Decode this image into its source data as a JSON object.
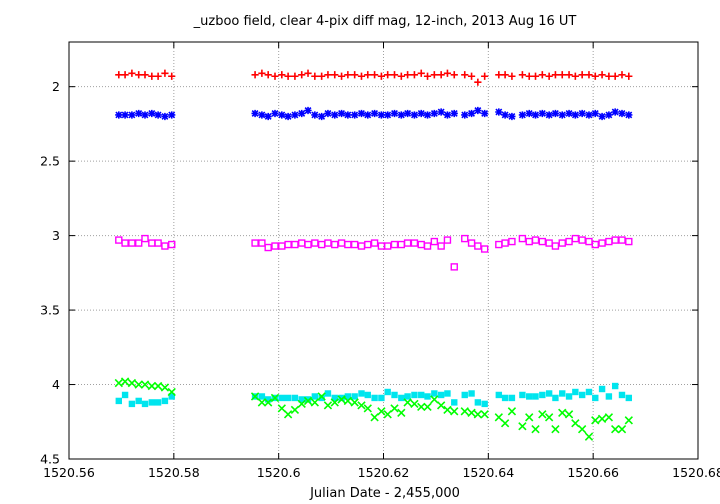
{
  "chart_data": {
    "type": "scatter",
    "title": "_uzboo field, clear 4-pix diff mag, 12-inch, 2013 Aug 16 UT",
    "xlabel": "Julian Date - 2,455,000",
    "ylabel": "",
    "xlim": [
      1520.56,
      1520.68
    ],
    "ylim": [
      1.7,
      4.5
    ],
    "y_inverted": true,
    "grid": true,
    "legend": "none",
    "xticks": [
      1520.56,
      1520.58,
      1520.6,
      1520.62,
      1520.64,
      1520.66,
      1520.68
    ],
    "xtick_labels": [
      "1520.56",
      "1520.58",
      "1520.6",
      "1520.62",
      "1520.64",
      "1520.66",
      "1520.68"
    ],
    "yticks": [
      2,
      2.5,
      3,
      3.5,
      4,
      4.5
    ],
    "ytick_labels": [
      "2",
      "2.5",
      "3",
      "3.5",
      "4",
      "4.5"
    ],
    "series": [
      {
        "marker": "plus",
        "color": "#ff0000",
        "x": [
          1520.5695,
          1520.5707,
          1520.572,
          1520.5733,
          1520.5745,
          1520.5758,
          1520.577,
          1520.5783,
          1520.5796,
          1520.5955,
          1520.5968,
          1520.598,
          1520.5993,
          1520.6006,
          1520.6018,
          1520.6031,
          1520.6044,
          1520.6056,
          1520.6069,
          1520.6082,
          1520.6094,
          1520.6107,
          1520.612,
          1520.6132,
          1520.6145,
          1520.6158,
          1520.617,
          1520.6183,
          1520.6196,
          1520.6208,
          1520.6221,
          1520.6234,
          1520.6246,
          1520.6259,
          1520.6272,
          1520.6284,
          1520.6297,
          1520.631,
          1520.6322,
          1520.6335,
          1520.6355,
          1520.6368,
          1520.638,
          1520.6393,
          1520.642,
          1520.6432,
          1520.6445,
          1520.6465,
          1520.6478,
          1520.649,
          1520.6503,
          1520.6516,
          1520.6528,
          1520.6541,
          1520.6554,
          1520.6566,
          1520.6579,
          1520.6592,
          1520.6604,
          1520.6617,
          1520.663,
          1520.6642,
          1520.6655,
          1520.6668
        ],
        "y": [
          1.92,
          1.92,
          1.91,
          1.92,
          1.92,
          1.93,
          1.93,
          1.91,
          1.93,
          1.92,
          1.91,
          1.92,
          1.93,
          1.92,
          1.93,
          1.93,
          1.92,
          1.91,
          1.93,
          1.93,
          1.92,
          1.92,
          1.93,
          1.92,
          1.92,
          1.93,
          1.92,
          1.92,
          1.93,
          1.92,
          1.92,
          1.93,
          1.92,
          1.92,
          1.91,
          1.93,
          1.92,
          1.92,
          1.91,
          1.92,
          1.92,
          1.93,
          1.97,
          1.93,
          1.92,
          1.92,
          1.93,
          1.92,
          1.93,
          1.93,
          1.92,
          1.93,
          1.92,
          1.92,
          1.92,
          1.93,
          1.92,
          1.92,
          1.93,
          1.92,
          1.93,
          1.93,
          1.92,
          1.93
        ]
      },
      {
        "marker": "star",
        "color": "#0000ff",
        "x": [
          1520.5695,
          1520.5707,
          1520.572,
          1520.5733,
          1520.5745,
          1520.5758,
          1520.577,
          1520.5783,
          1520.5796,
          1520.5955,
          1520.5968,
          1520.598,
          1520.5993,
          1520.6006,
          1520.6018,
          1520.6031,
          1520.6044,
          1520.6056,
          1520.6069,
          1520.6082,
          1520.6094,
          1520.6107,
          1520.612,
          1520.6132,
          1520.6145,
          1520.6158,
          1520.617,
          1520.6183,
          1520.6196,
          1520.6208,
          1520.6221,
          1520.6234,
          1520.6246,
          1520.6259,
          1520.6272,
          1520.6284,
          1520.6297,
          1520.631,
          1520.6322,
          1520.6335,
          1520.6355,
          1520.6368,
          1520.638,
          1520.6393,
          1520.642,
          1520.6432,
          1520.6445,
          1520.6465,
          1520.6478,
          1520.649,
          1520.6503,
          1520.6516,
          1520.6528,
          1520.6541,
          1520.6554,
          1520.6566,
          1520.6579,
          1520.6592,
          1520.6604,
          1520.6617,
          1520.663,
          1520.6642,
          1520.6655,
          1520.6668
        ],
        "y": [
          2.19,
          2.19,
          2.19,
          2.18,
          2.19,
          2.18,
          2.19,
          2.2,
          2.19,
          2.18,
          2.19,
          2.2,
          2.18,
          2.19,
          2.2,
          2.19,
          2.18,
          2.16,
          2.19,
          2.2,
          2.18,
          2.19,
          2.18,
          2.19,
          2.19,
          2.18,
          2.19,
          2.18,
          2.19,
          2.19,
          2.18,
          2.19,
          2.18,
          2.19,
          2.18,
          2.19,
          2.18,
          2.17,
          2.19,
          2.18,
          2.19,
          2.18,
          2.16,
          2.18,
          2.17,
          2.19,
          2.2,
          2.19,
          2.18,
          2.19,
          2.18,
          2.19,
          2.18,
          2.19,
          2.18,
          2.19,
          2.18,
          2.19,
          2.18,
          2.2,
          2.19,
          2.17,
          2.18,
          2.19
        ]
      },
      {
        "marker": "open-square",
        "color": "#ff00ff",
        "x": [
          1520.5695,
          1520.5707,
          1520.572,
          1520.5733,
          1520.5745,
          1520.5758,
          1520.577,
          1520.5783,
          1520.5796,
          1520.5955,
          1520.5968,
          1520.598,
          1520.5993,
          1520.6006,
          1520.6018,
          1520.6031,
          1520.6044,
          1520.6056,
          1520.6069,
          1520.6082,
          1520.6094,
          1520.6107,
          1520.612,
          1520.6132,
          1520.6145,
          1520.6158,
          1520.617,
          1520.6183,
          1520.6196,
          1520.6208,
          1520.6221,
          1520.6234,
          1520.6246,
          1520.6259,
          1520.6272,
          1520.6284,
          1520.6297,
          1520.631,
          1520.6322,
          1520.6335,
          1520.6355,
          1520.6368,
          1520.638,
          1520.6393,
          1520.642,
          1520.6432,
          1520.6445,
          1520.6465,
          1520.6478,
          1520.649,
          1520.6503,
          1520.6516,
          1520.6528,
          1520.6541,
          1520.6554,
          1520.6566,
          1520.6579,
          1520.6592,
          1520.6604,
          1520.6617,
          1520.663,
          1520.6642,
          1520.6655,
          1520.6668
        ],
        "y": [
          3.03,
          3.05,
          3.05,
          3.05,
          3.02,
          3.05,
          3.05,
          3.07,
          3.06,
          3.05,
          3.05,
          3.08,
          3.07,
          3.07,
          3.06,
          3.06,
          3.05,
          3.06,
          3.05,
          3.06,
          3.05,
          3.06,
          3.05,
          3.06,
          3.06,
          3.07,
          3.06,
          3.05,
          3.07,
          3.07,
          3.06,
          3.06,
          3.05,
          3.05,
          3.06,
          3.07,
          3.04,
          3.07,
          3.03,
          3.21,
          3.02,
          3.05,
          3.07,
          3.09,
          3.06,
          3.05,
          3.04,
          3.02,
          3.04,
          3.03,
          3.04,
          3.05,
          3.07,
          3.05,
          3.04,
          3.02,
          3.03,
          3.04,
          3.06,
          3.05,
          3.04,
          3.03,
          3.03,
          3.04
        ]
      },
      {
        "marker": "filled-square",
        "color": "#00e5ee",
        "x": [
          1520.5695,
          1520.5707,
          1520.572,
          1520.5733,
          1520.5745,
          1520.5758,
          1520.577,
          1520.5783,
          1520.5796,
          1520.5955,
          1520.5968,
          1520.598,
          1520.5993,
          1520.6006,
          1520.6018,
          1520.6031,
          1520.6044,
          1520.6056,
          1520.6069,
          1520.6082,
          1520.6094,
          1520.6107,
          1520.612,
          1520.6132,
          1520.6145,
          1520.6158,
          1520.617,
          1520.6183,
          1520.6196,
          1520.6208,
          1520.6221,
          1520.6234,
          1520.6246,
          1520.6259,
          1520.6272,
          1520.6284,
          1520.6297,
          1520.631,
          1520.6322,
          1520.6335,
          1520.6355,
          1520.6368,
          1520.638,
          1520.6393,
          1520.642,
          1520.6432,
          1520.6445,
          1520.6465,
          1520.6478,
          1520.649,
          1520.6503,
          1520.6516,
          1520.6528,
          1520.6541,
          1520.6554,
          1520.6566,
          1520.6579,
          1520.6592,
          1520.6604,
          1520.6617,
          1520.663,
          1520.6642,
          1520.6655,
          1520.6668
        ],
        "y": [
          4.11,
          4.07,
          4.13,
          4.11,
          4.13,
          4.12,
          4.12,
          4.11,
          4.08,
          4.08,
          4.08,
          4.1,
          4.09,
          4.09,
          4.09,
          4.09,
          4.1,
          4.1,
          4.08,
          4.09,
          4.06,
          4.09,
          4.09,
          4.08,
          4.08,
          4.06,
          4.07,
          4.09,
          4.09,
          4.05,
          4.07,
          4.09,
          4.08,
          4.07,
          4.07,
          4.08,
          4.06,
          4.07,
          4.06,
          4.12,
          4.07,
          4.06,
          4.12,
          4.13,
          4.07,
          4.09,
          4.09,
          4.07,
          4.08,
          4.08,
          4.07,
          4.06,
          4.09,
          4.06,
          4.08,
          4.05,
          4.07,
          4.05,
          4.09,
          4.03,
          4.08,
          4.01,
          4.07,
          4.09
        ]
      },
      {
        "marker": "x",
        "color": "#00ff00",
        "x": [
          1520.5695,
          1520.5707,
          1520.572,
          1520.5733,
          1520.5745,
          1520.5758,
          1520.577,
          1520.5783,
          1520.5796,
          1520.5955,
          1520.5968,
          1520.598,
          1520.5993,
          1520.6006,
          1520.6018,
          1520.6031,
          1520.6044,
          1520.6056,
          1520.6069,
          1520.6082,
          1520.6094,
          1520.6107,
          1520.612,
          1520.6132,
          1520.6145,
          1520.6158,
          1520.617,
          1520.6183,
          1520.6196,
          1520.6208,
          1520.6221,
          1520.6234,
          1520.6246,
          1520.6259,
          1520.6272,
          1520.6284,
          1520.6297,
          1520.631,
          1520.6322,
          1520.6335,
          1520.6355,
          1520.6368,
          1520.638,
          1520.6393,
          1520.642,
          1520.6432,
          1520.6445,
          1520.6465,
          1520.6478,
          1520.649,
          1520.6503,
          1520.6516,
          1520.6528,
          1520.6541,
          1520.6554,
          1520.6566,
          1520.6579,
          1520.6592,
          1520.6604,
          1520.6617,
          1520.663,
          1520.6642,
          1520.6655,
          1520.6668
        ],
        "y": [
          3.99,
          3.98,
          3.99,
          4.0,
          4.0,
          4.01,
          4.01,
          4.02,
          4.05,
          4.08,
          4.12,
          4.12,
          4.09,
          4.16,
          4.2,
          4.17,
          4.13,
          4.11,
          4.12,
          4.08,
          4.14,
          4.12,
          4.1,
          4.11,
          4.12,
          4.14,
          4.16,
          4.22,
          4.18,
          4.2,
          4.16,
          4.19,
          4.12,
          4.13,
          4.15,
          4.15,
          4.1,
          4.14,
          4.17,
          4.18,
          4.18,
          4.19,
          4.2,
          4.2,
          4.22,
          4.26,
          4.18,
          4.28,
          4.22,
          4.3,
          4.2,
          4.22,
          4.3,
          4.19,
          4.2,
          4.26,
          4.3,
          4.35,
          4.24,
          4.23,
          4.22,
          4.3,
          4.3,
          4.24
        ]
      }
    ]
  }
}
